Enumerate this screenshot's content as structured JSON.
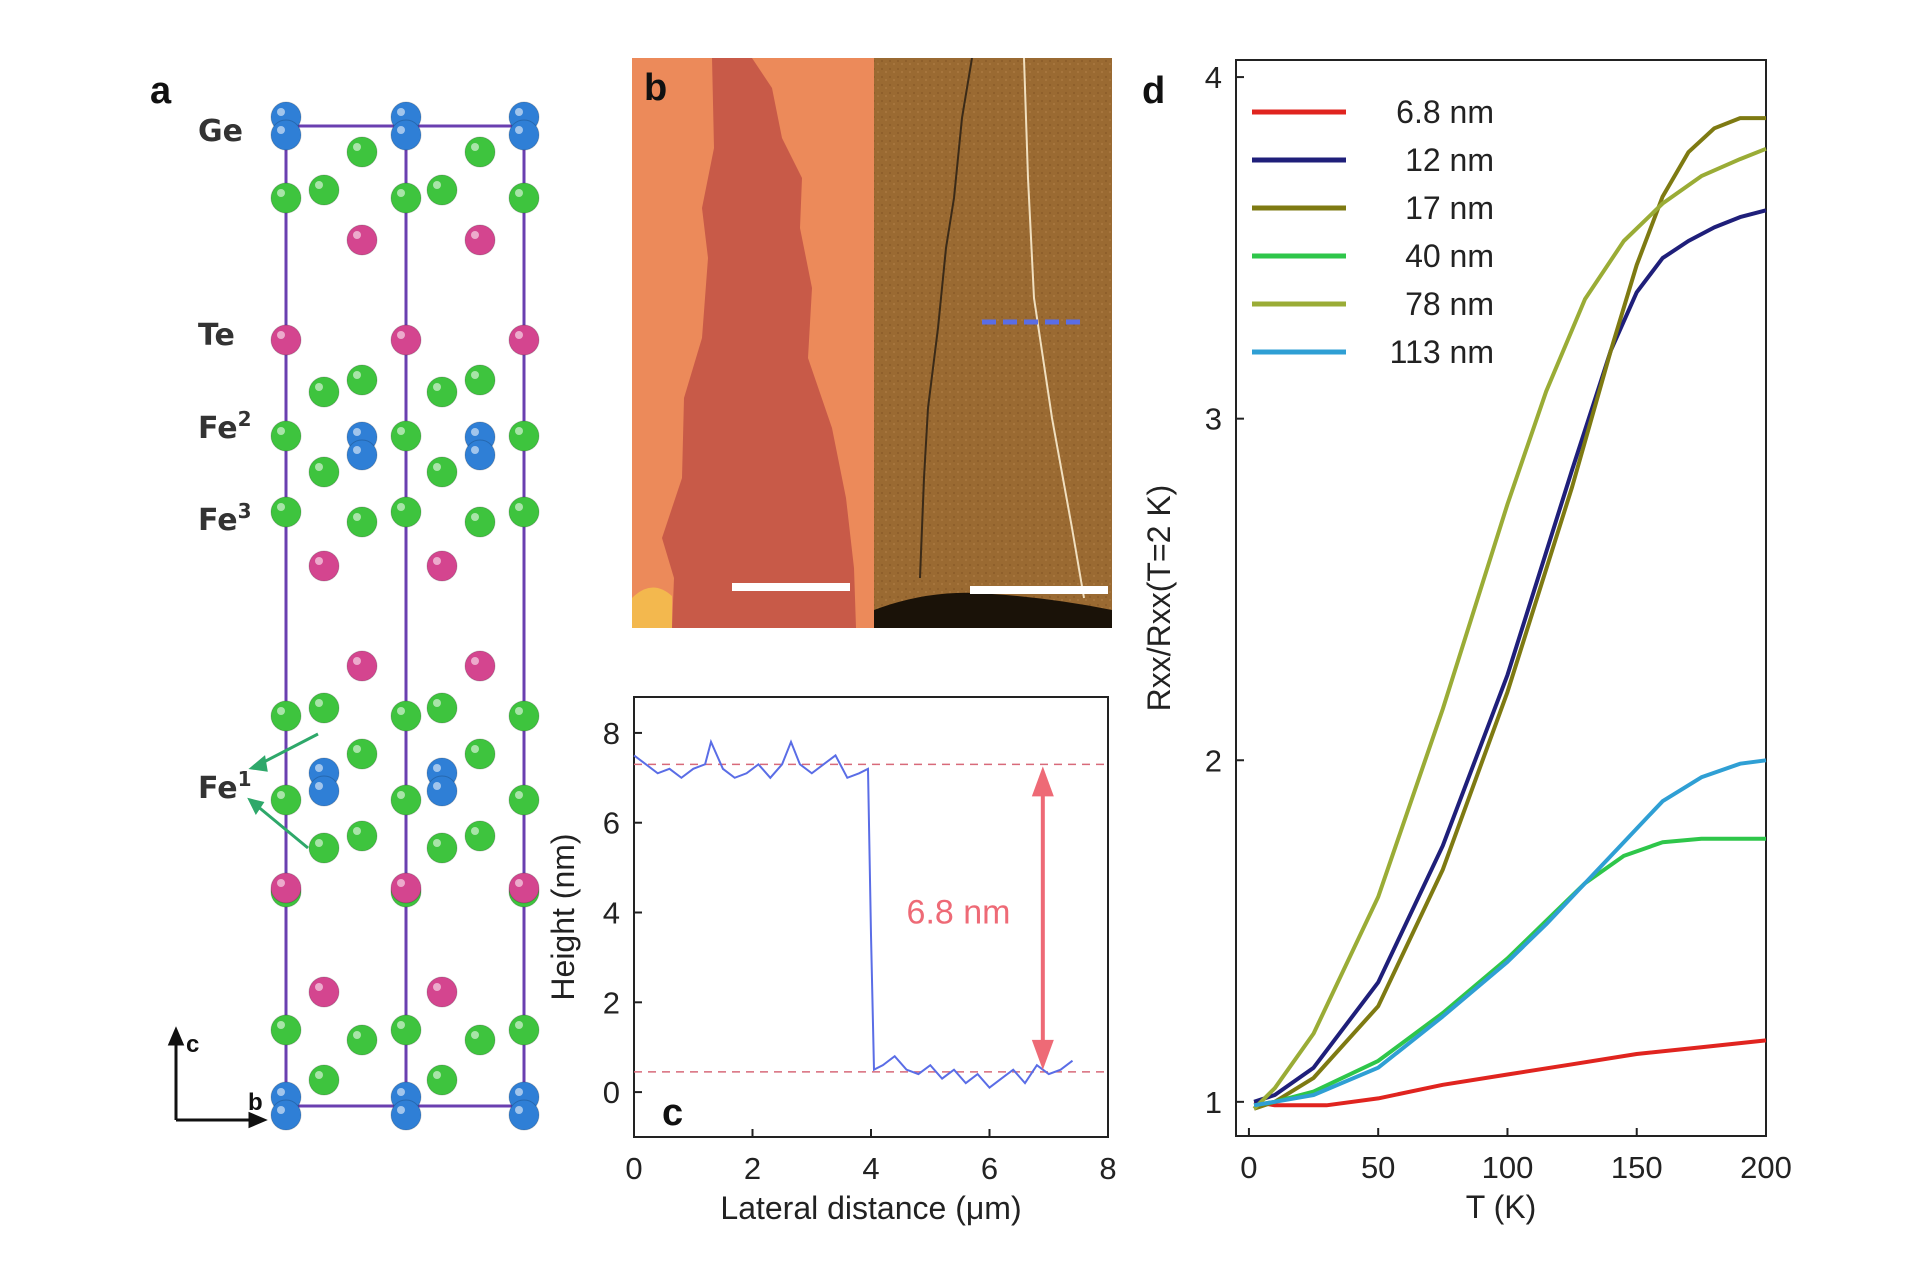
{
  "figure": {
    "panels": {
      "a": "a",
      "b": "b",
      "c": "c",
      "d": "d"
    }
  },
  "panel_a": {
    "labels": {
      "ge": "Ge",
      "te": "Te",
      "fe2_base": "Fe",
      "fe2_sup": "2",
      "fe3_base": "Fe",
      "fe3_sup": "3",
      "fe1_base": "Fe",
      "fe1_sup": "1"
    },
    "axes": {
      "c": "c",
      "b": "b"
    },
    "colors": {
      "ge": "#2f7fd6",
      "te": "#d4458f",
      "fe": "#3ec43e",
      "cell": "#6a3fb0"
    }
  },
  "panel_b": {
    "colors": {
      "optical": "#ec8a5a",
      "flake": "#c85a48",
      "afm": "#9a6a32",
      "scalebar": "#ffffff",
      "line": "#5a6de6"
    }
  },
  "chart_data": [
    {
      "type": "line",
      "panel": "c",
      "xlabel": "Lateral distance (μm)",
      "ylabel": "Height (nm)",
      "xlim": [
        0,
        8
      ],
      "ylim": [
        -1,
        8.8
      ],
      "xticks": [
        "0",
        "2",
        "4",
        "6",
        "8"
      ],
      "yticks": [
        "0",
        "2",
        "4",
        "6",
        "8"
      ],
      "annotation": "6.8 nm",
      "reference_lines": [
        7.3,
        0.45
      ],
      "series": [
        {
          "color": "#5a6de6",
          "x": [
            0,
            0.2,
            0.4,
            0.6,
            0.8,
            1.0,
            1.2,
            1.3,
            1.5,
            1.7,
            1.9,
            2.1,
            2.3,
            2.5,
            2.65,
            2.8,
            3.0,
            3.2,
            3.4,
            3.6,
            3.8,
            3.95,
            4.0,
            4.05,
            4.2,
            4.4,
            4.6,
            4.8,
            5.0,
            5.2,
            5.4,
            5.6,
            5.8,
            6.0,
            6.2,
            6.4,
            6.6,
            6.8,
            7.0,
            7.2,
            7.4
          ],
          "y": [
            7.5,
            7.3,
            7.1,
            7.2,
            7.0,
            7.2,
            7.3,
            7.8,
            7.2,
            7.0,
            7.1,
            7.3,
            7.0,
            7.3,
            7.8,
            7.3,
            7.1,
            7.3,
            7.5,
            7.0,
            7.1,
            7.2,
            3.5,
            0.5,
            0.6,
            0.8,
            0.5,
            0.4,
            0.6,
            0.3,
            0.5,
            0.2,
            0.4,
            0.1,
            0.3,
            0.5,
            0.2,
            0.6,
            0.4,
            0.5,
            0.7
          ]
        }
      ]
    },
    {
      "type": "line",
      "panel": "d",
      "xlabel": "T (K)",
      "ylabel": "Rxx/Rxx(T=2 K)",
      "xlim": [
        -5,
        200
      ],
      "ylim": [
        0.9,
        4.05
      ],
      "xticks": [
        "0",
        "50",
        "100",
        "150",
        "200"
      ],
      "yticks": [
        "1",
        "2",
        "3",
        "4"
      ],
      "legend_position": "top-left",
      "series": [
        {
          "name": "6.8 nm",
          "color": "#e0241f",
          "x": [
            2,
            10,
            30,
            50,
            75,
            100,
            125,
            150,
            175,
            200
          ],
          "y": [
            1.0,
            0.99,
            0.99,
            1.01,
            1.05,
            1.08,
            1.11,
            1.14,
            1.16,
            1.18
          ]
        },
        {
          "name": "12 nm",
          "color": "#1f1f7a",
          "x": [
            2,
            10,
            25,
            50,
            75,
            100,
            125,
            140,
            150,
            160,
            170,
            180,
            190,
            200
          ],
          "y": [
            1.0,
            1.02,
            1.1,
            1.35,
            1.75,
            2.25,
            2.85,
            3.2,
            3.37,
            3.47,
            3.52,
            3.56,
            3.59,
            3.61
          ]
        },
        {
          "name": "17 nm",
          "color": "#7e7a12",
          "x": [
            2,
            10,
            25,
            50,
            75,
            100,
            125,
            140,
            150,
            160,
            170,
            180,
            190,
            200
          ],
          "y": [
            0.98,
            1.0,
            1.07,
            1.28,
            1.68,
            2.2,
            2.8,
            3.2,
            3.45,
            3.65,
            3.78,
            3.85,
            3.88,
            3.88
          ]
        },
        {
          "name": "40 nm",
          "color": "#2ec64a",
          "x": [
            2,
            10,
            25,
            50,
            75,
            100,
            115,
            130,
            145,
            160,
            175,
            190,
            200
          ],
          "y": [
            0.99,
            1.0,
            1.03,
            1.12,
            1.26,
            1.42,
            1.53,
            1.64,
            1.72,
            1.76,
            1.77,
            1.77,
            1.77
          ]
        },
        {
          "name": "78 nm",
          "color": "#9aac36",
          "x": [
            2,
            10,
            25,
            50,
            75,
            100,
            115,
            130,
            145,
            160,
            175,
            190,
            200
          ],
          "y": [
            0.98,
            1.04,
            1.2,
            1.6,
            2.15,
            2.75,
            3.08,
            3.35,
            3.52,
            3.63,
            3.71,
            3.76,
            3.79
          ]
        },
        {
          "name": "113 nm",
          "color": "#2f9fd4",
          "x": [
            2,
            10,
            25,
            50,
            75,
            100,
            115,
            130,
            145,
            160,
            175,
            190,
            200
          ],
          "y": [
            0.99,
            1.0,
            1.02,
            1.1,
            1.25,
            1.41,
            1.52,
            1.64,
            1.76,
            1.88,
            1.95,
            1.99,
            2.0
          ]
        }
      ]
    }
  ]
}
